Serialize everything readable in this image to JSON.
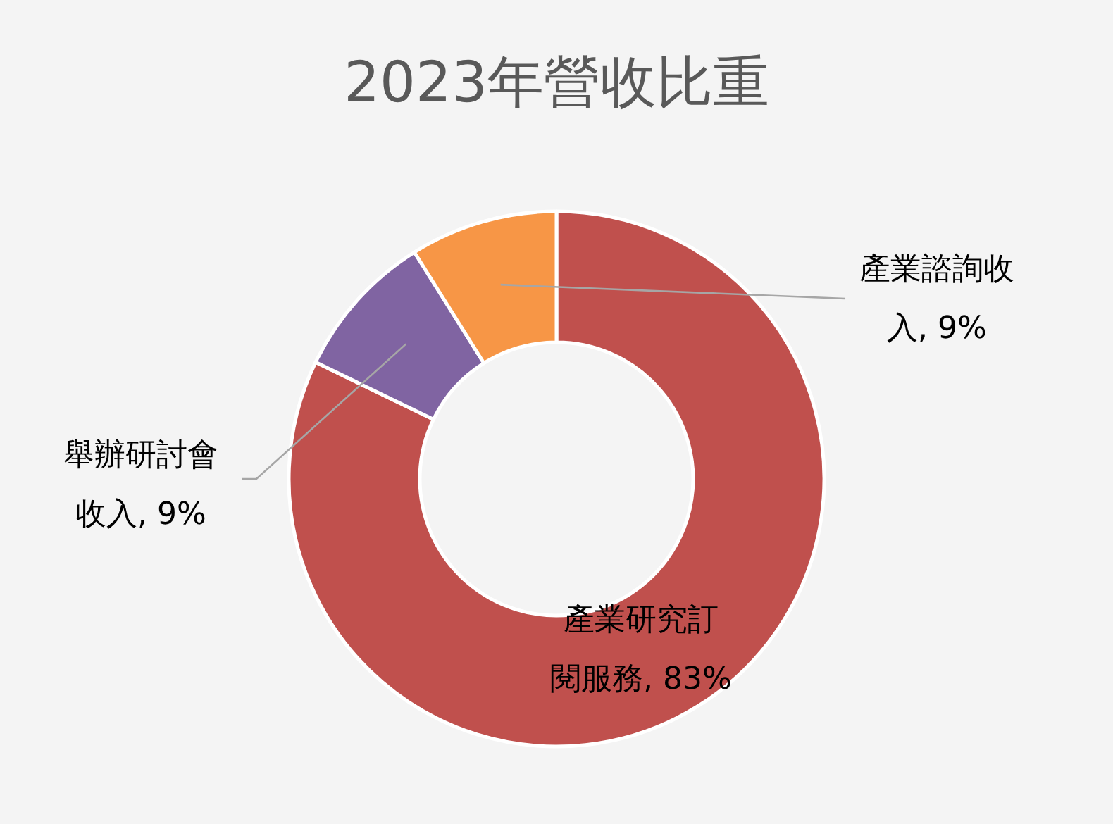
{
  "chart_data": {
    "type": "donut",
    "title": "2023年營收比重",
    "categories": [
      "產業研究訂閱服務",
      "舉辦研討會收入",
      "產業諮詢收入"
    ],
    "values": [
      83,
      9,
      9
    ],
    "value_labels": [
      "83%",
      "9%",
      "9%"
    ],
    "colors": [
      "#c0504d",
      "#8064a2",
      "#f79646"
    ]
  }
}
